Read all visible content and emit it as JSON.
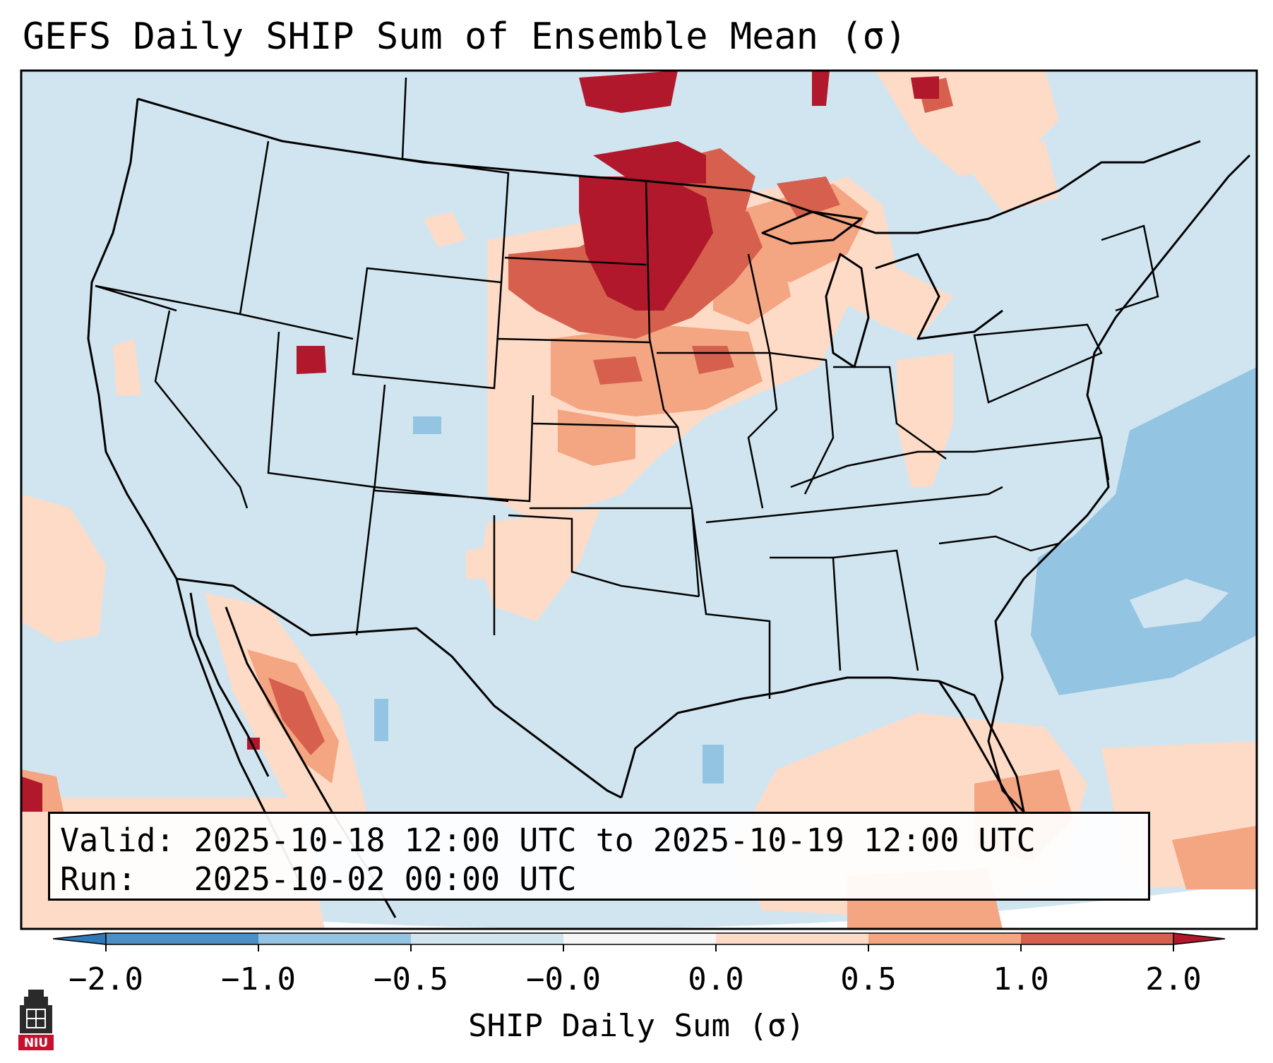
{
  "title": "GEFS Daily SHIP Sum of Ensemble Mean (σ)",
  "info": {
    "valid_label": "Valid:",
    "valid_value": "2025-10-18 12:00 UTC to 2025-10-19 12:00 UTC",
    "run_label": "Run:",
    "run_value": "2025-10-02 00:00 UTC"
  },
  "colorbar": {
    "label": "SHIP Daily Sum (σ)",
    "ticks": [
      "−2.0",
      "−1.0",
      "−0.5",
      "−0.0",
      "0.0",
      "0.5",
      "1.0",
      "2.0"
    ],
    "colors": [
      "#4a8fc6",
      "#93c4e1",
      "#d1e5f0",
      "#f7f7f7",
      "#fddbc7",
      "#f4a582",
      "#d6604d",
      "#b2182b"
    ],
    "extend_low_color": "#2f78b8",
    "extend_high_color": "#b2182b"
  },
  "logo": {
    "text": "NIU",
    "color": "#c8102e"
  },
  "regions": {
    "dakotas_minnesota": "high",
    "upper_midwest_wisconsin": "moderate",
    "nebraska_kansas_iowa": "low",
    "great_lakes_canada": "low",
    "sw_new_mexico_tx_panhandle": "weak",
    "gulf_of_california_sierra_madre": "moderate",
    "nw_utah_spot": "high",
    "pacific_offshore": "weak",
    "gulf_caribbean_south": "low",
    "west_atlantic": "negative"
  }
}
